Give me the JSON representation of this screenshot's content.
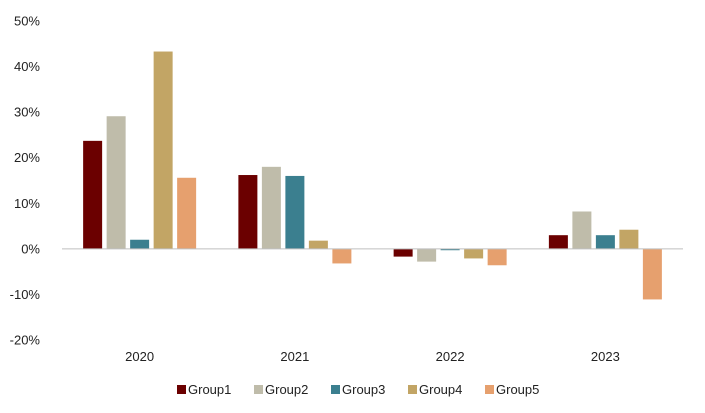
{
  "chart_data": {
    "type": "bar",
    "title": "",
    "xlabel": "",
    "ylabel": "",
    "categories": [
      "2020",
      "2021",
      "2022",
      "2023"
    ],
    "ylim": [
      -20,
      50
    ],
    "yticks": [
      -20,
      -10,
      0,
      10,
      20,
      30,
      40,
      50
    ],
    "ytick_labels": [
      "-20%",
      "-10%",
      "0%",
      "10%",
      "20%",
      "30%",
      "40%",
      "50%"
    ],
    "legend_position": "bottom",
    "grid": false,
    "series": [
      {
        "name": "Group1",
        "color": "#6b0000",
        "values": [
          23.7,
          16.2,
          -1.7,
          3.0
        ]
      },
      {
        "name": "Group2",
        "color": "#bfbcaa",
        "values": [
          29.1,
          18.0,
          -2.8,
          8.2
        ]
      },
      {
        "name": "Group3",
        "color": "#3b7f8f",
        "values": [
          2.0,
          16.0,
          -0.3,
          3.0
        ]
      },
      {
        "name": "Group4",
        "color": "#c2a565",
        "values": [
          43.3,
          1.8,
          -2.1,
          4.2
        ]
      },
      {
        "name": "Group5",
        "color": "#e6a06e",
        "values": [
          15.6,
          -3.2,
          -3.6,
          -11.1
        ]
      }
    ]
  }
}
